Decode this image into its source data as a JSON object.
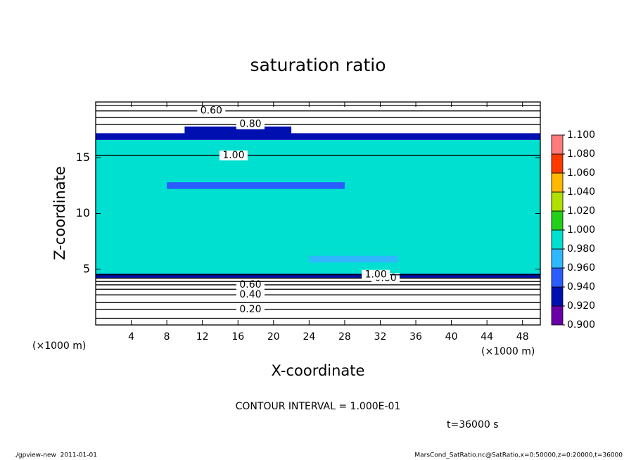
{
  "chart_data": {
    "type": "contour",
    "title": "saturation ratio",
    "x_label": "X-coordinate",
    "y_label": "Z-coordinate",
    "x_unit": "(×1000 m)",
    "y_unit": "(×1000 m)",
    "xlim": [
      0,
      50
    ],
    "xticks": [
      4,
      8,
      12,
      16,
      20,
      24,
      28,
      32,
      36,
      40,
      44,
      48
    ],
    "ylim": [
      0,
      20
    ],
    "yticks": [
      5,
      10,
      15
    ],
    "colorbar": {
      "levels": [
        {
          "value": 0.9,
          "label": "0.900"
        },
        {
          "value": 0.92,
          "label": "0.920"
        },
        {
          "value": 0.94,
          "label": "0.940"
        },
        {
          "value": 0.96,
          "label": "0.960"
        },
        {
          "value": 0.98,
          "label": "0.980"
        },
        {
          "value": 1.0,
          "label": "1.000"
        },
        {
          "value": 1.02,
          "label": "1.020"
        },
        {
          "value": 1.04,
          "label": "1.040"
        },
        {
          "value": 1.06,
          "label": "1.060"
        },
        {
          "value": 1.08,
          "label": "1.080"
        },
        {
          "value": 1.1,
          "label": "1.100"
        }
      ],
      "colors": [
        "#6a00a8",
        "#0010b0",
        "#2a5cff",
        "#30b8ff",
        "#00e0d0",
        "#22d01a",
        "#b0e000",
        "#ffb800",
        "#ff3a00",
        "#ff7a7a"
      ]
    },
    "fills": {
      "x0": [
        0,
        0,
        0,
        8,
        10,
        24
      ],
      "x1": [
        50,
        50,
        50,
        28,
        22,
        34
      ],
      "z0": [
        4.6,
        4.2,
        16.6,
        12.2,
        17.0,
        5.6
      ],
      "z1": [
        16.6,
        4.6,
        17.2,
        12.8,
        17.8,
        6.2
      ],
      "values": [
        0.99,
        0.93,
        0.93,
        0.95,
        0.93,
        0.97
      ]
    },
    "contours": {
      "levels": [
        0.1,
        0.2,
        0.3,
        0.4,
        0.5,
        0.6,
        0.7,
        0.8,
        1.0,
        1.0,
        0.8,
        0.7,
        0.6,
        0.5
      ],
      "z": [
        0.6,
        1.4,
        2.0,
        2.7,
        3.2,
        3.6,
        3.9,
        4.2,
        4.5,
        15.2,
        18.0,
        18.6,
        19.2,
        19.7
      ],
      "labels": [
        null,
        "0.20",
        null,
        "0.40",
        null,
        "0.60",
        null,
        "0.80",
        "1.00",
        "1.00",
        "0.80",
        null,
        "0.60",
        null
      ]
    },
    "contour_interval": "CONTOUR INTERVAL = 1.000E-01",
    "time_label": "t=36000 s",
    "footer_left": "./gpview-new  2011-01-01",
    "footer_right": "MarsCond_SatRatio.nc@SatRatio,x=0:50000,z=0:20000,t=36000"
  }
}
